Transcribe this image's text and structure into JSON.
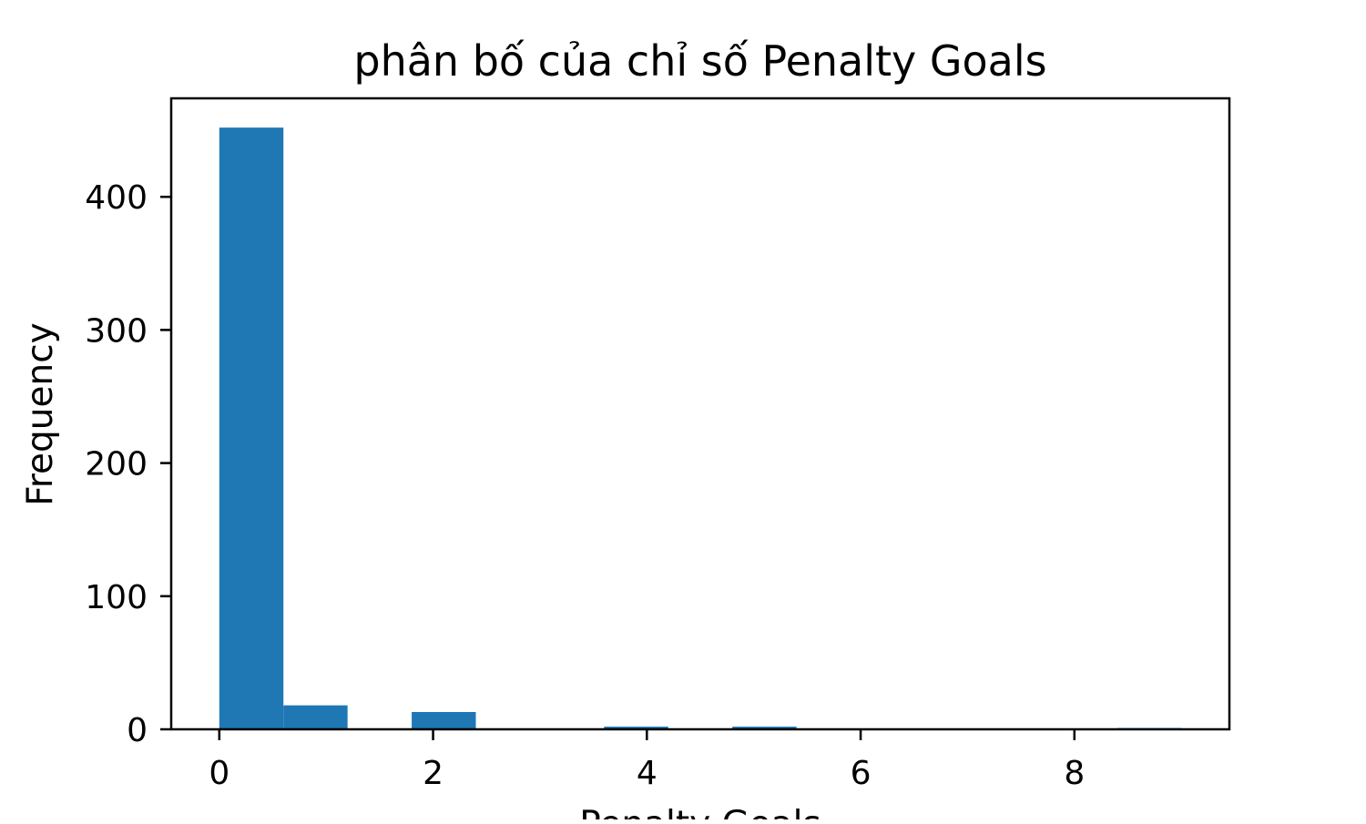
{
  "chart_data": {
    "type": "bar",
    "title": "phân bố của chỉ số Penalty Goals",
    "xlabel": "Penalty Goals",
    "ylabel": "Frequency",
    "bar_color": "#1f77b4",
    "xlim": [
      -0.45,
      9.45
    ],
    "ylim": [
      0,
      474
    ],
    "x_ticks": [
      0,
      2,
      4,
      6,
      8
    ],
    "y_ticks": [
      0,
      100,
      200,
      300,
      400
    ],
    "bins": [
      {
        "start": 0.0,
        "end": 0.6,
        "count": 452
      },
      {
        "start": 0.6,
        "end": 1.2,
        "count": 18
      },
      {
        "start": 1.2,
        "end": 1.8,
        "count": 0
      },
      {
        "start": 1.8,
        "end": 2.4,
        "count": 13
      },
      {
        "start": 2.4,
        "end": 3.0,
        "count": 0
      },
      {
        "start": 3.0,
        "end": 3.6,
        "count": 0
      },
      {
        "start": 3.6,
        "end": 4.2,
        "count": 2
      },
      {
        "start": 4.2,
        "end": 4.8,
        "count": 0
      },
      {
        "start": 4.8,
        "end": 5.4,
        "count": 2
      },
      {
        "start": 5.4,
        "end": 6.0,
        "count": 0
      },
      {
        "start": 6.0,
        "end": 6.6,
        "count": 0
      },
      {
        "start": 6.6,
        "end": 7.2,
        "count": 0
      },
      {
        "start": 7.2,
        "end": 7.8,
        "count": 0
      },
      {
        "start": 7.8,
        "end": 8.4,
        "count": 0
      },
      {
        "start": 8.4,
        "end": 9.0,
        "count": 1
      }
    ]
  }
}
